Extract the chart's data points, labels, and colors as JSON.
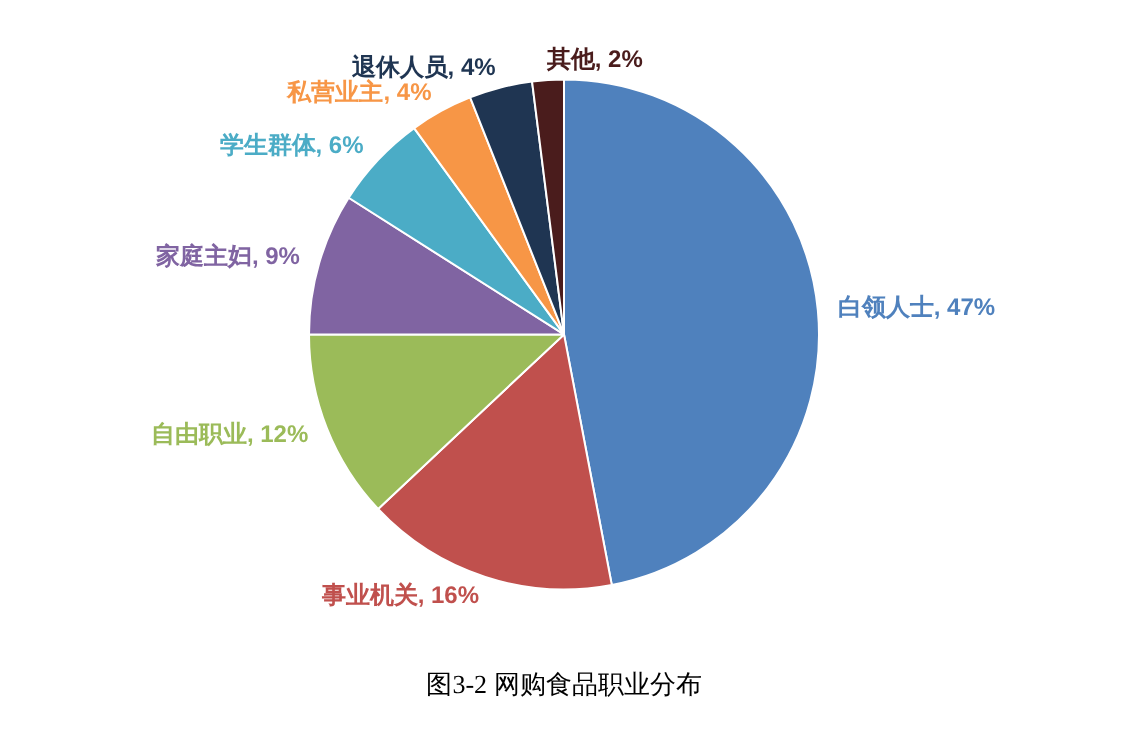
{
  "chart_data": {
    "type": "pie",
    "title": "图3-2 网购食品职业分布",
    "categories": [
      "白领人士",
      "事业机关",
      "自由职业",
      "家庭主妇",
      "学生群体",
      "私营业主",
      "退休人员",
      "其他"
    ],
    "values": [
      47,
      16,
      12,
      9,
      6,
      4,
      4,
      2
    ],
    "value_labels": [
      "47%",
      "16%",
      "12%",
      "9%",
      "6%",
      "4%",
      "4%",
      "2%"
    ],
    "colors": [
      "#4f81bd",
      "#c0504d",
      "#9bbb59",
      "#8064a2",
      "#4bacc6",
      "#f79646",
      "#1f3552",
      "#4a1c1c"
    ],
    "legend": false
  }
}
